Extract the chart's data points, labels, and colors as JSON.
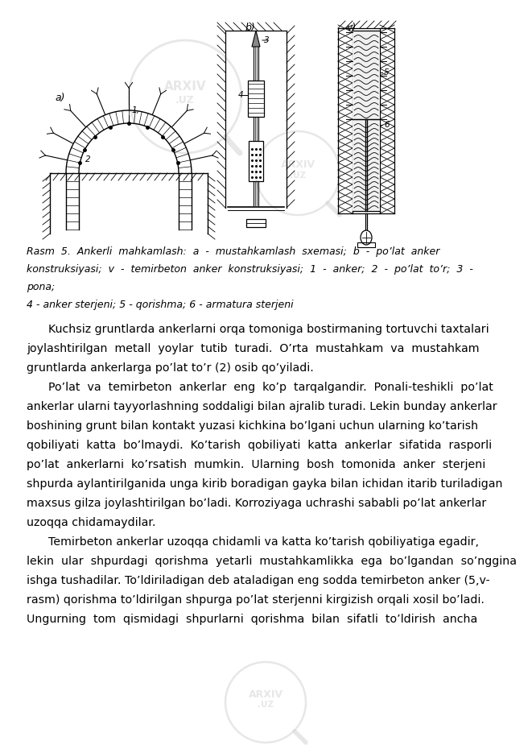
{
  "page_width": 6.61,
  "page_height": 9.35,
  "background_color": "#ffffff",
  "caption_italic_text": [
    "Rasm  5.  Ankerli  mahkamlash:  a  -  mustahkamlash  sxemasi;  b  -  po’lat  anker",
    "konstruksiyasi;  v  -  temirbeton  anker  konstruksiyasi;  1  -  anker;  2  -  po’lat  to’r;  3  -",
    "pona;"
  ],
  "caption_italic_text2": "4 - anker sterjeni; 5 - qorishma; 6 - armatura sterjeni",
  "body_text": [
    "      Kuchsiz gruntlarda ankerlarni orqa tomoniga bostirmaning tortuvchi taxtalari",
    "joylashtirilgan  metall  yoylar  tutib  turadi.  O’rta  mustahkam  va  mustahkam",
    "gruntlarda ankerlarga po’lat to’r (2) osib qo’yiladi.",
    "      Po’lat  va  temirbeton  ankerlar  eng  ko’p  tarqalgandir.  Ponali-teshikli  po’lat",
    "ankerlar ularni tayyorlashning soddaligi bilan ajralib turadi. Lekin bunday ankerlar",
    "boshining grunt bilan kontakt yuzasi kichkina bo’lgani uchun ularning ko’tarish",
    "qobiliyati  katta  bo’lmaydi.  Ko’tarish  qobiliyati  katta  ankerlar  sifatida  rasporli",
    "po’lat  ankerlarni  ko’rsatish  mumkin.  Ularning  bosh  tomonida  anker  sterjeni",
    "shpurda aylantirilganida unga kirib boradigan gayka bilan ichidan itarib turiladigan",
    "maxsus gilza joylashtirilgan bo’ladi. Korroziyaga uchrashi sababli po’lat ankerlar",
    "uzoqqa chidamaydilar.",
    "      Temirbeton ankerlar uzoqqa chidamli va katta ko’tarish qobiliyatiga egadir,",
    "lekin  ular  shpurdagi  qorishma  yetarli  mustahkamlikka  ega  bo’lgandan  so’nggina",
    "ishga tushadilar. To’ldiriladigan deb ataladigan eng sodda temirbeton anker (5,v-",
    "rasm) qorishma to’ldirilgan shpurga po’lat sterjenni kirgizish orqali xosil bo’ladi.",
    "Ungurning  tom  qismidagi  shpurlarni  qorishma  bilan  sifatli  to’ldirish  ancha"
  ],
  "text_color": "#000000",
  "font_size_caption": 9.0,
  "font_size_body": 10.2,
  "watermark_color": "#d0d0d0",
  "watermark_alpha": 0.5
}
